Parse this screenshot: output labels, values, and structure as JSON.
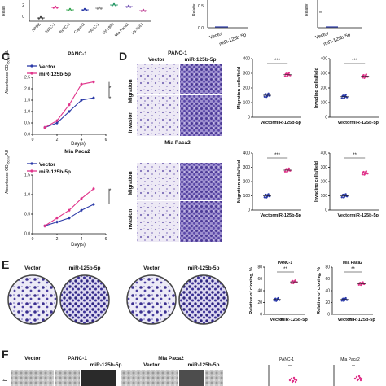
{
  "panel_letters": {
    "c": "C",
    "d": "D",
    "e": "E",
    "f": "F"
  },
  "colors": {
    "vector": "#2b3aa8",
    "mir": "#e0338a",
    "stain": "#5b4aa6",
    "pale": "#d9d3ea"
  },
  "top_strip": {
    "ylabel_a": "Relati",
    "ylabel_b": "Relativ",
    "ylabel_c": "Relativ",
    "cell_lines": [
      "HPDE",
      "AsPC-1",
      "BxPC-3",
      "Capan2",
      "PANC-1",
      "SW1990",
      "Mia Paca2",
      "Hs-766T"
    ],
    "x_groups": [
      "Vector",
      "miR-125b-5p"
    ],
    "stars": "**"
  },
  "panel_c": {
    "top_title": "PANC-1",
    "bottom_title": "Mia Paca2",
    "legend": [
      "Vector",
      "miR-125b-5p"
    ],
    "ylabel": "Absorbance OD",
    "ylabel_sub": "450 nm",
    "ylabel_unit": "AU",
    "xlabel": "Day(s)",
    "stars": "*"
  },
  "panel_d": {
    "panc_title": "PANC-1",
    "mia_title": "Mia Paca2",
    "col_vector": "Vector",
    "col_mir": "miR-125b-5p",
    "row_migration": "Migration",
    "row_invasion": "Invasion",
    "ylabel_mig": "Migration cells/field",
    "ylabel_inv": "Invading cells/field",
    "x_groups": [
      "Vector",
      "miR-125b-5p"
    ],
    "stars3": "***",
    "stars2": "**"
  },
  "panel_e": {
    "vector": "Vector",
    "mir": "miR-125b-5p",
    "panc_title": "PANC-1",
    "mia_title": "Mia Paca2",
    "ylabel": "Relative of cloning, %",
    "x_groups": [
      "Vector",
      "miR-125b-5p"
    ],
    "stars": "**"
  },
  "panel_f": {
    "vector": "Vector",
    "panc_title": "PANC-1",
    "mir": "miR-125b-5p",
    "mia_title": "Mia Paca2",
    "vector2": "Vector",
    "mir2": "miR-125b-5p",
    "small_panc": "PANC-1",
    "small_mia": "Mia Paca2",
    "stars": "**",
    "side_label": "h"
  },
  "chart_data": [
    {
      "type": "line",
      "title": "PANC-1",
      "xlabel": "Day(s)",
      "ylabel": "Absorbance OD450 nm AU",
      "x": [
        1,
        2,
        3,
        4,
        5
      ],
      "series": [
        {
          "name": "Vector",
          "values": [
            0.3,
            0.5,
            1.0,
            1.5,
            1.6
          ]
        },
        {
          "name": "miR-125b-5p",
          "values": [
            0.3,
            0.6,
            1.3,
            2.2,
            2.3
          ]
        }
      ],
      "ylim": [
        0,
        2.5
      ]
    },
    {
      "type": "line",
      "title": "Mia Paca2",
      "xlabel": "Day(s)",
      "ylabel": "Absorbance OD450 nm AU",
      "x": [
        1,
        2,
        3,
        4,
        5
      ],
      "series": [
        {
          "name": "Vector",
          "values": [
            0.2,
            0.3,
            0.4,
            0.6,
            0.75
          ]
        },
        {
          "name": "miR-125b-5p",
          "values": [
            0.2,
            0.4,
            0.6,
            0.9,
            1.15
          ]
        }
      ],
      "ylim": [
        0,
        1.5
      ]
    },
    {
      "type": "scatter",
      "title": "PANC-1",
      "ylabel": "Migration cells/field",
      "categories": [
        "Vector",
        "miR-125b-5p"
      ],
      "series": [
        {
          "values": [
            150,
            290
          ]
        }
      ],
      "ylim": [
        0,
        400
      ]
    },
    {
      "type": "scatter",
      "title": "PANC-1",
      "ylabel": "Invading cells/field",
      "categories": [
        "Vector",
        "miR-125b-5p"
      ],
      "series": [
        {
          "values": [
            140,
            280
          ]
        }
      ],
      "ylim": [
        0,
        400
      ]
    },
    {
      "type": "scatter",
      "title": "Mia Paca2",
      "ylabel": "Migration cells/field",
      "categories": [
        "Vector",
        "miR-125b-5p"
      ],
      "series": [
        {
          "values": [
            100,
            280
          ]
        }
      ],
      "ylim": [
        0,
        400
      ]
    },
    {
      "type": "scatter",
      "title": "Mia Paca2",
      "ylabel": "Invading cells/field",
      "categories": [
        "Vector",
        "miR-125b-5p"
      ],
      "series": [
        {
          "values": [
            100,
            260
          ]
        }
      ],
      "ylim": [
        0,
        400
      ]
    },
    {
      "type": "scatter",
      "title": "PANC-1",
      "ylabel": "Relative of cloning, %",
      "categories": [
        "Vector",
        "miR-125b-5p"
      ],
      "series": [
        {
          "values": [
            25,
            55
          ]
        }
      ],
      "ylim": [
        0,
        80
      ]
    },
    {
      "type": "scatter",
      "title": "Mia Paca2",
      "ylabel": "Relative of cloning, %",
      "categories": [
        "Vector",
        "miR-125b-5p"
      ],
      "series": [
        {
          "values": [
            25,
            52
          ]
        }
      ],
      "ylim": [
        0,
        80
      ]
    }
  ]
}
